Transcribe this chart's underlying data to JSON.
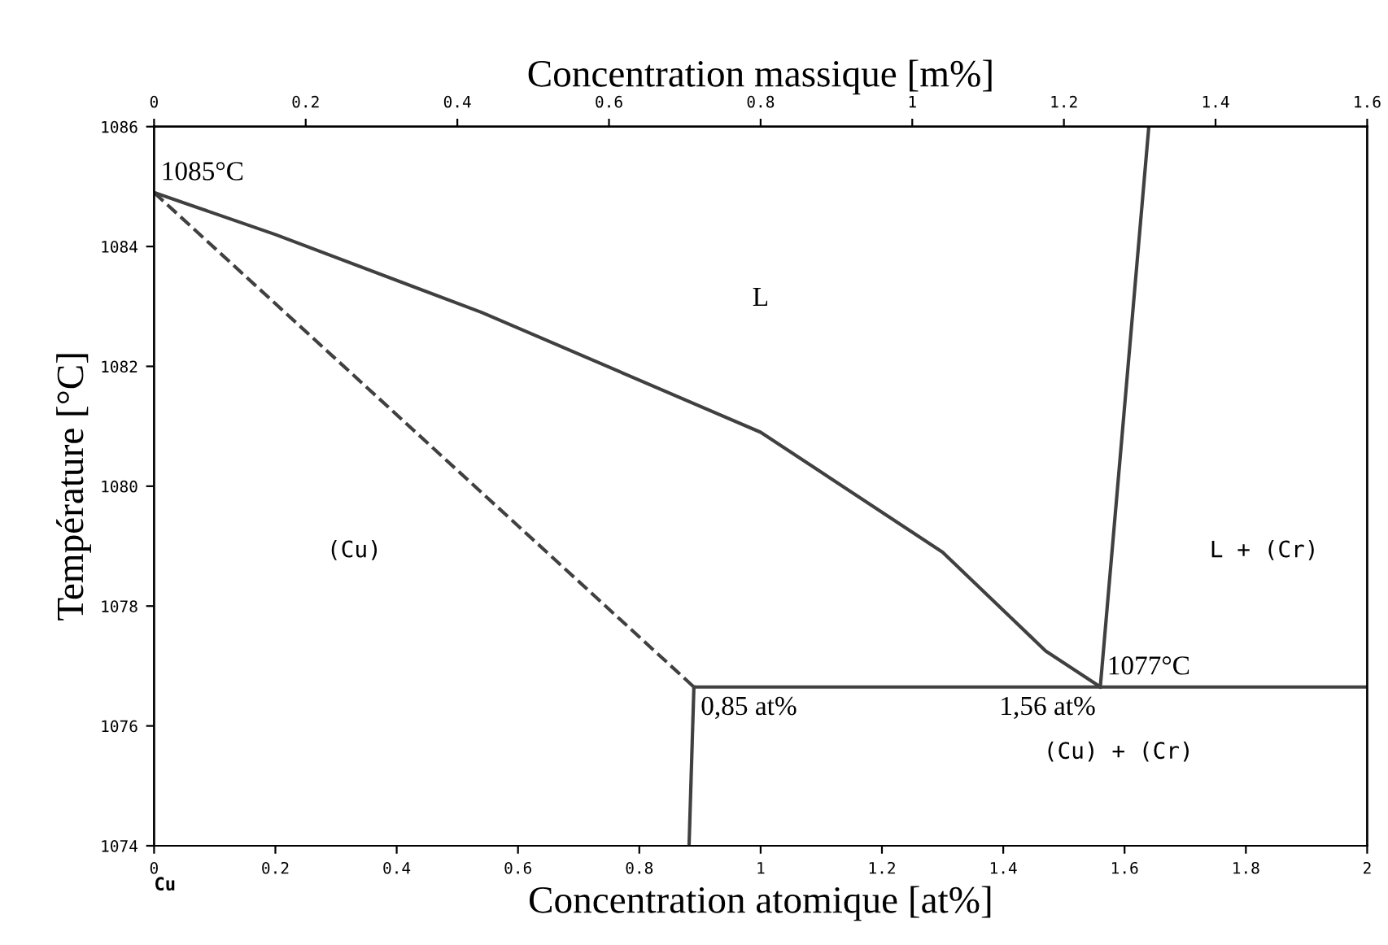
{
  "chart_data": {
    "type": "line",
    "xlabel": "Concentration atomique [at%]",
    "x2label": "Concentration massique [m%]",
    "ylabel": "Température [°C]",
    "xlim": [
      0,
      2
    ],
    "xticks": [
      0,
      0.2,
      0.4,
      0.6,
      0.8,
      1,
      1.2,
      1.4,
      1.6,
      1.8,
      2
    ],
    "x2lim": [
      0,
      1.6
    ],
    "x2ticks": [
      0,
      0.2,
      0.4,
      0.6,
      0.8,
      1,
      1.2,
      1.4,
      1.6
    ],
    "ylim": [
      1074,
      1086
    ],
    "yticks": [
      1074,
      1076,
      1078,
      1080,
      1082,
      1084,
      1086
    ],
    "grid": false,
    "marker": "none",
    "series": [
      {
        "color": "#404040",
        "line_style": "solid",
        "x": [
          0,
          0.2,
          0.54,
          1.0,
          1.3,
          1.47,
          1.56
        ],
        "values": [
          1084.9,
          1084.2,
          1082.9,
          1080.9,
          1078.9,
          1077.25,
          1076.65
        ]
      },
      {
        "color": "#404040",
        "line_style": "dashed",
        "x": [
          0,
          0.89
        ],
        "values": [
          1084.9,
          1076.65
        ]
      },
      {
        "color": "#404040",
        "line_style": "solid",
        "x": [
          0.89,
          2
        ],
        "values": [
          1076.65,
          1076.65
        ]
      },
      {
        "color": "#404040",
        "line_style": "solid",
        "x": [
          0.89,
          0.882
        ],
        "values": [
          1076.65,
          1074
        ]
      },
      {
        "color": "#404040",
        "line_style": "solid",
        "x": [
          1.56,
          1.64
        ],
        "values": [
          1076.65,
          1086
        ]
      }
    ],
    "annotations": [
      {
        "text": "1085°C",
        "x": 0,
        "y": 1084.9
      },
      {
        "text": "1077°C",
        "x": 1.56,
        "y": 1076.65
      },
      {
        "text": "0,85 at%",
        "x": 0.89,
        "y": 1076.65
      },
      {
        "text": "1,56 at%",
        "x": 1.56,
        "y": 1076.65
      },
      "L",
      "(Cu)",
      "L + (Cr)",
      "(Cu) + (Cr)",
      "Cu"
    ]
  }
}
